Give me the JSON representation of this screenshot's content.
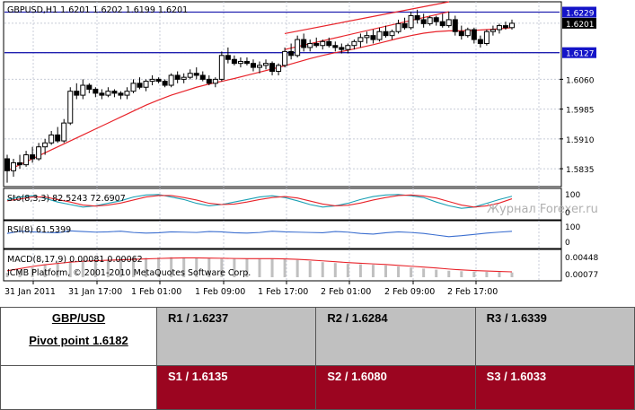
{
  "colors": {
    "background": "#ffffff",
    "grid": "#c8ccd8",
    "frame": "#000000",
    "candle_bull_body": "#ffffff",
    "candle_bear_body": "#000000",
    "moving_average": "#e8232a",
    "channel": "#e8232a",
    "level_line": "#2020b0",
    "level_box_bg": "#1414c8",
    "current_price_bg": "#000000",
    "stoch_main": "#1aa0b4",
    "stoch_signal": "#e8232a",
    "rsi_line": "#3c6fd0",
    "macd_hist": "#c0c0c0",
    "macd_signal": "#e8232a",
    "resistance_cell": "#c0c0c0",
    "support_cell": "#9b0520"
  },
  "chart_data": {
    "type": "candlestick",
    "title": "GBPUSD,H1  1.6201 1.6202 1.6199 1.6201",
    "symbol": "GBPUSD",
    "timeframe": "H1",
    "y_range": [
      1.579,
      1.6255
    ],
    "y_ticks": [
      {
        "value": 1.606,
        "label": "1.6060"
      },
      {
        "value": 1.5985,
        "label": "1.5985"
      },
      {
        "value": 1.591,
        "label": "1.5910"
      },
      {
        "value": 1.5835,
        "label": "1.5835"
      }
    ],
    "levels": [
      {
        "value": 1.6229,
        "label": "1.6229"
      },
      {
        "value": 1.6127,
        "label": "1.6127"
      }
    ],
    "current_price": {
      "value": 1.6201,
      "label": "1.6201"
    },
    "x_labels": [
      "31 Jan 2011",
      "31 Jan 17:00",
      "1 Feb 01:00",
      "1 Feb 09:00",
      "1 Feb 17:00",
      "2 Feb 01:00",
      "2 Feb 09:00",
      "2 Feb 17:00"
    ],
    "candles": [
      [
        1.586,
        1.587,
        1.58,
        1.583
      ],
      [
        1.583,
        1.586,
        1.5815,
        1.585
      ],
      [
        1.585,
        1.587,
        1.5835,
        1.5845
      ],
      [
        1.5845,
        1.588,
        1.584,
        1.587
      ],
      [
        1.587,
        1.589,
        1.585,
        1.586
      ],
      [
        1.586,
        1.59,
        1.5855,
        1.589
      ],
      [
        1.589,
        1.591,
        1.587,
        1.59
      ],
      [
        1.59,
        1.593,
        1.5895,
        1.592
      ],
      [
        1.592,
        1.594,
        1.59,
        1.5905
      ],
      [
        1.5905,
        1.596,
        1.59,
        1.595
      ],
      [
        1.595,
        1.604,
        1.5945,
        1.603
      ],
      [
        1.603,
        1.605,
        1.601,
        1.602
      ],
      [
        1.602,
        1.606,
        1.601,
        1.6045
      ],
      [
        1.6045,
        1.605,
        1.6025,
        1.6035
      ],
      [
        1.6035,
        1.604,
        1.6015,
        1.6025
      ],
      [
        1.6025,
        1.6035,
        1.601,
        1.602
      ],
      [
        1.602,
        1.604,
        1.6015,
        1.603
      ],
      [
        1.603,
        1.6035,
        1.6015,
        1.6025
      ],
      [
        1.6025,
        1.603,
        1.601,
        1.602
      ],
      [
        1.602,
        1.604,
        1.601,
        1.603
      ],
      [
        1.603,
        1.606,
        1.6025,
        1.605
      ],
      [
        1.605,
        1.6065,
        1.6035,
        1.604
      ],
      [
        1.604,
        1.606,
        1.603,
        1.6055
      ],
      [
        1.6055,
        1.607,
        1.6045,
        1.606
      ],
      [
        1.606,
        1.6065,
        1.605,
        1.6055
      ],
      [
        1.6055,
        1.606,
        1.604,
        1.6045
      ],
      [
        1.6045,
        1.6075,
        1.604,
        1.607
      ],
      [
        1.607,
        1.608,
        1.605,
        1.606
      ],
      [
        1.606,
        1.6075,
        1.605,
        1.6065
      ],
      [
        1.6065,
        1.6085,
        1.606,
        1.6075
      ],
      [
        1.6075,
        1.609,
        1.606,
        1.607
      ],
      [
        1.607,
        1.608,
        1.6055,
        1.606
      ],
      [
        1.606,
        1.607,
        1.6045,
        1.605
      ],
      [
        1.605,
        1.6065,
        1.604,
        1.606
      ],
      [
        1.606,
        1.613,
        1.6055,
        1.612
      ],
      [
        1.612,
        1.614,
        1.61,
        1.611
      ],
      [
        1.611,
        1.612,
        1.6095,
        1.61
      ],
      [
        1.61,
        1.6115,
        1.609,
        1.6105
      ],
      [
        1.6105,
        1.6115,
        1.6095,
        1.61
      ],
      [
        1.61,
        1.611,
        1.608,
        1.609
      ],
      [
        1.609,
        1.6105,
        1.6075,
        1.6095
      ],
      [
        1.6095,
        1.611,
        1.6085,
        1.61
      ],
      [
        1.61,
        1.6105,
        1.607,
        1.608
      ],
      [
        1.608,
        1.61,
        1.607,
        1.6095
      ],
      [
        1.6095,
        1.614,
        1.609,
        1.613
      ],
      [
        1.613,
        1.615,
        1.611,
        1.612
      ],
      [
        1.612,
        1.617,
        1.6115,
        1.616
      ],
      [
        1.616,
        1.6175,
        1.613,
        1.614
      ],
      [
        1.614,
        1.616,
        1.613,
        1.615
      ],
      [
        1.615,
        1.6165,
        1.614,
        1.6145
      ],
      [
        1.6145,
        1.616,
        1.6135,
        1.6155
      ],
      [
        1.6155,
        1.6165,
        1.614,
        1.6145
      ],
      [
        1.6145,
        1.6155,
        1.613,
        1.614
      ],
      [
        1.614,
        1.615,
        1.6125,
        1.6135
      ],
      [
        1.6135,
        1.615,
        1.6125,
        1.6145
      ],
      [
        1.6145,
        1.616,
        1.6135,
        1.6155
      ],
      [
        1.6155,
        1.6175,
        1.614,
        1.6165
      ],
      [
        1.6165,
        1.618,
        1.615,
        1.617
      ],
      [
        1.617,
        1.6185,
        1.615,
        1.616
      ],
      [
        1.616,
        1.619,
        1.6155,
        1.618
      ],
      [
        1.618,
        1.6195,
        1.6165,
        1.617
      ],
      [
        1.617,
        1.6185,
        1.616,
        1.618
      ],
      [
        1.618,
        1.621,
        1.6175,
        1.62
      ],
      [
        1.62,
        1.6215,
        1.6185,
        1.619
      ],
      [
        1.619,
        1.623,
        1.6185,
        1.622
      ],
      [
        1.622,
        1.6235,
        1.62,
        1.621
      ],
      [
        1.621,
        1.6225,
        1.619,
        1.62
      ],
      [
        1.62,
        1.622,
        1.6195,
        1.6215
      ],
      [
        1.6215,
        1.622,
        1.6195,
        1.6205
      ],
      [
        1.6205,
        1.6225,
        1.619,
        1.6195
      ],
      [
        1.6195,
        1.623,
        1.619,
        1.621
      ],
      [
        1.621,
        1.622,
        1.617,
        1.618
      ],
      [
        1.618,
        1.6195,
        1.616,
        1.617
      ],
      [
        1.617,
        1.619,
        1.6165,
        1.6185
      ],
      [
        1.6185,
        1.619,
        1.615,
        1.616
      ],
      [
        1.616,
        1.617,
        1.614,
        1.615
      ],
      [
        1.615,
        1.6185,
        1.6145,
        1.618
      ],
      [
        1.618,
        1.6195,
        1.617,
        1.6185
      ],
      [
        1.6185,
        1.62,
        1.6175,
        1.6195
      ],
      [
        1.6195,
        1.6205,
        1.6185,
        1.619
      ],
      [
        1.619,
        1.621,
        1.6185,
        1.6201
      ]
    ],
    "ma_y": [
      1.583,
      1.5845,
      1.586,
      1.5875,
      1.589,
      1.5905,
      1.592,
      1.5935,
      1.595,
      1.5965,
      1.598,
      1.5995,
      1.6008,
      1.602,
      1.603,
      1.604,
      1.6048,
      1.6055,
      1.6062,
      1.607,
      1.6078,
      1.6086,
      1.6094,
      1.6103,
      1.6112,
      1.612,
      1.6127,
      1.6133,
      1.614,
      1.6147,
      1.6155,
      1.6163,
      1.617,
      1.6176,
      1.618,
      1.6182,
      1.6182,
      1.6183,
      1.6185,
      1.6187,
      1.619
    ],
    "channel": [
      [
        1.6135,
        1.623
      ],
      [
        1.6175,
        1.6255
      ]
    ]
  },
  "indicators": {
    "stochastic": {
      "label": "Sto(8,3,3) 82.5243 72.6907",
      "scale": {
        "top": "100",
        "bottom": "0"
      },
      "main": [
        70,
        80,
        85,
        75,
        60,
        50,
        40,
        45,
        55,
        65,
        80,
        88,
        90,
        80,
        70,
        55,
        45,
        50,
        60,
        70,
        80,
        85,
        78,
        65,
        50,
        40,
        45,
        55,
        70,
        82,
        88,
        90,
        85,
        78,
        60,
        45,
        35,
        40,
        55,
        70,
        83
      ],
      "signal": [
        65,
        72,
        80,
        80,
        70,
        60,
        48,
        44,
        48,
        56,
        68,
        80,
        86,
        86,
        78,
        68,
        55,
        50,
        52,
        60,
        70,
        78,
        82,
        76,
        64,
        52,
        45,
        47,
        56,
        68,
        78,
        86,
        88,
        84,
        76,
        62,
        48,
        40,
        45,
        56,
        73
      ]
    },
    "rsi": {
      "label": "RSI(8) 61.5399",
      "scale": {
        "top": "100",
        "bottom": "0"
      },
      "values": [
        55,
        62,
        60,
        58,
        57,
        63,
        61,
        59,
        60,
        62,
        58,
        56,
        57,
        60,
        59,
        58,
        61,
        60,
        57,
        56,
        58,
        62,
        60,
        59,
        58,
        57,
        61,
        59,
        55,
        53,
        57,
        60,
        58,
        55,
        50,
        45,
        48,
        52,
        56,
        59,
        61.5
      ]
    },
    "macd": {
      "label": "MACD(8,17,9) 0.00081 0.00062",
      "scale": {
        "top": "0.00448",
        "bottom": "0.00077"
      },
      "hist": [
        0.2,
        0.3,
        0.45,
        0.6,
        0.7,
        0.75,
        0.78,
        0.8,
        0.82,
        0.85,
        0.88,
        0.9,
        0.92,
        0.93,
        0.92,
        0.9,
        0.88,
        0.86,
        0.85,
        0.86,
        0.87,
        0.86,
        0.84,
        0.8,
        0.75,
        0.7,
        0.66,
        0.62,
        0.6,
        0.58,
        0.55,
        0.5,
        0.45,
        0.4,
        0.35,
        0.3,
        0.28,
        0.26,
        0.25,
        0.24,
        0.22
      ],
      "signal": [
        0.3,
        0.4,
        0.5,
        0.58,
        0.64,
        0.7,
        0.74,
        0.77,
        0.79,
        0.81,
        0.83,
        0.85,
        0.87,
        0.89,
        0.9,
        0.9,
        0.89,
        0.88,
        0.87,
        0.86,
        0.86,
        0.86,
        0.85,
        0.83,
        0.8,
        0.76,
        0.72,
        0.68,
        0.65,
        0.62,
        0.59,
        0.55,
        0.51,
        0.47,
        0.43,
        0.38,
        0.34,
        0.31,
        0.29,
        0.27,
        0.25
      ]
    },
    "copyright": "ICMB Platform, © 2001-2010 MetaQuotes Software Corp.",
    "watermark": "Журнал Forexer.ru"
  },
  "table": {
    "pair": "GBP/USD",
    "pivot": "Pivot point 1.6182",
    "resistance": [
      "R1 / 1.6237",
      "R2 / 1.6284",
      "R3 / 1.6339"
    ],
    "support": [
      "S1 / 1.6135",
      "S2 / 1.6080",
      "S3 / 1.6033"
    ]
  }
}
